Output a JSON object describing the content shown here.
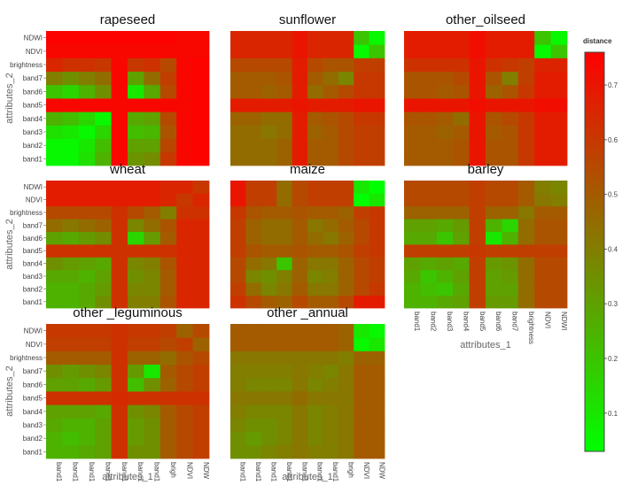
{
  "chart_data": {
    "type": "heatmap",
    "subplot_titles": [
      "rapeseed",
      "sunflower",
      "other_oilseed",
      "wheat",
      "maize",
      "barley",
      "other _leguminous",
      "other _annual"
    ],
    "attributes": [
      "band1",
      "band2",
      "band3",
      "band4",
      "band5",
      "band6",
      "band7",
      "brightness",
      "NDVI",
      "NDWI"
    ],
    "x_tick_labels_left": [
      "band1",
      "band1",
      "band1",
      "band1",
      "band1",
      "band1",
      "band1",
      "brigh",
      "NDVI",
      "NDW"
    ],
    "x_tick_labels_right": [
      "band1",
      "band2",
      "band3",
      "band4",
      "band5",
      "band6",
      "band7",
      "brightness",
      "NDVI",
      "NDWI"
    ],
    "y_tick_labels": [
      "band1",
      "band2",
      "band3",
      "band4",
      "band5",
      "band6",
      "band7",
      "brightness",
      "NDVI",
      "NDWI"
    ],
    "xlabel": "attributes_1",
    "ylabel": "attributes_2",
    "colorbar": {
      "title": "distance",
      "ticks": [
        0.1,
        0.2,
        0.3,
        0.4,
        0.5,
        0.6,
        0.7
      ],
      "range": [
        0.03,
        0.76
      ],
      "colors": [
        "#00ff00",
        "#ff0000"
      ]
    },
    "grid": false,
    "panels": [
      {
        "name": "rapeseed",
        "z": [
          [
            0.05,
            0.05,
            0.12,
            0.25,
            0.74,
            0.34,
            0.36,
            0.6,
            0.74,
            0.75
          ],
          [
            0.05,
            0.05,
            0.1,
            0.22,
            0.74,
            0.3,
            0.3,
            0.56,
            0.74,
            0.75
          ],
          [
            0.12,
            0.1,
            0.05,
            0.15,
            0.74,
            0.22,
            0.24,
            0.52,
            0.74,
            0.75
          ],
          [
            0.25,
            0.22,
            0.15,
            0.05,
            0.74,
            0.28,
            0.3,
            0.55,
            0.74,
            0.75
          ],
          [
            0.74,
            0.74,
            0.74,
            0.74,
            0.74,
            0.74,
            0.74,
            0.74,
            0.74,
            0.75
          ],
          [
            0.2,
            0.15,
            0.25,
            0.35,
            0.74,
            0.1,
            0.28,
            0.55,
            0.74,
            0.75
          ],
          [
            0.4,
            0.35,
            0.4,
            0.45,
            0.74,
            0.3,
            0.45,
            0.58,
            0.74,
            0.75
          ],
          [
            0.65,
            0.62,
            0.62,
            0.6,
            0.74,
            0.6,
            0.62,
            0.55,
            0.74,
            0.75
          ],
          [
            0.74,
            0.74,
            0.74,
            0.74,
            0.74,
            0.74,
            0.74,
            0.74,
            0.74,
            0.74
          ],
          [
            0.75,
            0.75,
            0.75,
            0.75,
            0.75,
            0.75,
            0.75,
            0.75,
            0.74,
            0.74
          ]
        ]
      },
      {
        "name": "sunflower",
        "z": [
          [
            0.45,
            0.45,
            0.45,
            0.48,
            0.68,
            0.5,
            0.5,
            0.55,
            0.58,
            0.58
          ],
          [
            0.45,
            0.45,
            0.45,
            0.48,
            0.68,
            0.5,
            0.5,
            0.55,
            0.58,
            0.58
          ],
          [
            0.45,
            0.45,
            0.42,
            0.45,
            0.68,
            0.48,
            0.5,
            0.55,
            0.58,
            0.58
          ],
          [
            0.48,
            0.48,
            0.45,
            0.45,
            0.68,
            0.5,
            0.52,
            0.55,
            0.6,
            0.6
          ],
          [
            0.68,
            0.68,
            0.68,
            0.68,
            0.7,
            0.68,
            0.68,
            0.68,
            0.7,
            0.7
          ],
          [
            0.5,
            0.5,
            0.48,
            0.5,
            0.68,
            0.45,
            0.5,
            0.55,
            0.6,
            0.6
          ],
          [
            0.5,
            0.5,
            0.5,
            0.52,
            0.68,
            0.5,
            0.45,
            0.38,
            0.6,
            0.6
          ],
          [
            0.55,
            0.55,
            0.55,
            0.55,
            0.68,
            0.55,
            0.52,
            0.52,
            0.58,
            0.58
          ],
          [
            0.65,
            0.65,
            0.65,
            0.65,
            0.7,
            0.65,
            0.65,
            0.65,
            0.05,
            0.2
          ],
          [
            0.65,
            0.65,
            0.65,
            0.65,
            0.7,
            0.65,
            0.65,
            0.65,
            0.2,
            0.05
          ]
        ]
      },
      {
        "name": "other_oilseed",
        "z": [
          [
            0.5,
            0.5,
            0.5,
            0.52,
            0.7,
            0.52,
            0.52,
            0.6,
            0.68,
            0.68
          ],
          [
            0.5,
            0.5,
            0.5,
            0.52,
            0.7,
            0.52,
            0.52,
            0.6,
            0.68,
            0.68
          ],
          [
            0.5,
            0.5,
            0.48,
            0.5,
            0.7,
            0.5,
            0.52,
            0.6,
            0.68,
            0.68
          ],
          [
            0.52,
            0.52,
            0.5,
            0.45,
            0.7,
            0.52,
            0.55,
            0.6,
            0.68,
            0.68
          ],
          [
            0.7,
            0.7,
            0.7,
            0.7,
            0.72,
            0.7,
            0.7,
            0.7,
            0.72,
            0.72
          ],
          [
            0.52,
            0.52,
            0.5,
            0.52,
            0.7,
            0.48,
            0.52,
            0.6,
            0.68,
            0.68
          ],
          [
            0.52,
            0.52,
            0.52,
            0.55,
            0.7,
            0.52,
            0.4,
            0.58,
            0.68,
            0.68
          ],
          [
            0.62,
            0.62,
            0.62,
            0.62,
            0.7,
            0.62,
            0.6,
            0.58,
            0.66,
            0.66
          ],
          [
            0.68,
            0.68,
            0.68,
            0.68,
            0.72,
            0.68,
            0.68,
            0.68,
            0.05,
            0.2
          ],
          [
            0.68,
            0.68,
            0.68,
            0.68,
            0.72,
            0.68,
            0.68,
            0.68,
            0.2,
            0.05
          ]
        ]
      },
      {
        "name": "wheat",
        "z": [
          [
            0.25,
            0.25,
            0.28,
            0.35,
            0.62,
            0.4,
            0.4,
            0.52,
            0.65,
            0.65
          ],
          [
            0.25,
            0.25,
            0.28,
            0.32,
            0.62,
            0.38,
            0.38,
            0.5,
            0.65,
            0.65
          ],
          [
            0.28,
            0.28,
            0.25,
            0.3,
            0.62,
            0.35,
            0.38,
            0.5,
            0.65,
            0.65
          ],
          [
            0.35,
            0.32,
            0.3,
            0.28,
            0.62,
            0.38,
            0.4,
            0.52,
            0.65,
            0.65
          ],
          [
            0.62,
            0.62,
            0.62,
            0.62,
            0.62,
            0.62,
            0.62,
            0.62,
            0.65,
            0.65
          ],
          [
            0.3,
            0.28,
            0.32,
            0.36,
            0.62,
            0.15,
            0.32,
            0.5,
            0.65,
            0.65
          ],
          [
            0.45,
            0.42,
            0.45,
            0.48,
            0.62,
            0.38,
            0.45,
            0.52,
            0.65,
            0.65
          ],
          [
            0.55,
            0.55,
            0.55,
            0.55,
            0.62,
            0.55,
            0.5,
            0.4,
            0.62,
            0.62
          ],
          [
            0.68,
            0.68,
            0.68,
            0.68,
            0.68,
            0.68,
            0.68,
            0.65,
            0.6,
            0.65
          ],
          [
            0.68,
            0.68,
            0.68,
            0.68,
            0.68,
            0.68,
            0.68,
            0.65,
            0.65,
            0.6
          ]
        ]
      },
      {
        "name": "maize",
        "z": [
          [
            0.62,
            0.55,
            0.5,
            0.48,
            0.55,
            0.5,
            0.5,
            0.55,
            0.68,
            0.68
          ],
          [
            0.58,
            0.45,
            0.38,
            0.42,
            0.5,
            0.42,
            0.42,
            0.48,
            0.55,
            0.6
          ],
          [
            0.55,
            0.38,
            0.35,
            0.4,
            0.48,
            0.38,
            0.4,
            0.48,
            0.55,
            0.58
          ],
          [
            0.55,
            0.45,
            0.42,
            0.2,
            0.48,
            0.42,
            0.42,
            0.48,
            0.55,
            0.58
          ],
          [
            0.58,
            0.52,
            0.5,
            0.5,
            0.52,
            0.5,
            0.5,
            0.52,
            0.58,
            0.6
          ],
          [
            0.58,
            0.48,
            0.45,
            0.45,
            0.5,
            0.45,
            0.42,
            0.48,
            0.55,
            0.6
          ],
          [
            0.58,
            0.48,
            0.45,
            0.45,
            0.5,
            0.42,
            0.45,
            0.5,
            0.55,
            0.6
          ],
          [
            0.6,
            0.52,
            0.5,
            0.5,
            0.52,
            0.5,
            0.5,
            0.48,
            0.58,
            0.6
          ],
          [
            0.7,
            0.58,
            0.58,
            0.45,
            0.55,
            0.58,
            0.58,
            0.58,
            0.03,
            0.1
          ],
          [
            0.7,
            0.58,
            0.58,
            0.45,
            0.55,
            0.58,
            0.58,
            0.58,
            0.1,
            0.03
          ]
        ]
      },
      {
        "name": "barley",
        "z": [
          [
            0.25,
            0.25,
            0.28,
            0.3,
            0.58,
            0.32,
            0.32,
            0.45,
            0.55,
            0.55
          ],
          [
            0.25,
            0.22,
            0.2,
            0.28,
            0.58,
            0.3,
            0.3,
            0.45,
            0.55,
            0.55
          ],
          [
            0.28,
            0.2,
            0.25,
            0.3,
            0.58,
            0.3,
            0.32,
            0.45,
            0.55,
            0.55
          ],
          [
            0.3,
            0.28,
            0.3,
            0.28,
            0.58,
            0.32,
            0.34,
            0.45,
            0.55,
            0.55
          ],
          [
            0.58,
            0.58,
            0.58,
            0.58,
            0.6,
            0.58,
            0.58,
            0.58,
            0.58,
            0.58
          ],
          [
            0.28,
            0.28,
            0.2,
            0.3,
            0.58,
            0.1,
            0.25,
            0.45,
            0.52,
            0.52
          ],
          [
            0.3,
            0.3,
            0.28,
            0.32,
            0.58,
            0.25,
            0.15,
            0.45,
            0.52,
            0.52
          ],
          [
            0.48,
            0.48,
            0.48,
            0.48,
            0.58,
            0.48,
            0.48,
            0.42,
            0.5,
            0.5
          ],
          [
            0.55,
            0.55,
            0.55,
            0.55,
            0.58,
            0.55,
            0.55,
            0.5,
            0.42,
            0.4
          ],
          [
            0.55,
            0.55,
            0.55,
            0.55,
            0.58,
            0.55,
            0.55,
            0.5,
            0.4,
            0.38
          ]
        ]
      },
      {
        "name": "other _leguminous",
        "z": [
          [
            0.25,
            0.25,
            0.28,
            0.3,
            0.62,
            0.35,
            0.35,
            0.5,
            0.55,
            0.58
          ],
          [
            0.25,
            0.22,
            0.25,
            0.3,
            0.62,
            0.32,
            0.35,
            0.5,
            0.55,
            0.58
          ],
          [
            0.28,
            0.25,
            0.25,
            0.3,
            0.62,
            0.32,
            0.35,
            0.5,
            0.55,
            0.58
          ],
          [
            0.3,
            0.3,
            0.3,
            0.28,
            0.62,
            0.35,
            0.38,
            0.5,
            0.55,
            0.58
          ],
          [
            0.62,
            0.62,
            0.62,
            0.62,
            0.64,
            0.62,
            0.62,
            0.62,
            0.62,
            0.62
          ],
          [
            0.3,
            0.3,
            0.28,
            0.32,
            0.62,
            0.22,
            0.35,
            0.48,
            0.55,
            0.58
          ],
          [
            0.35,
            0.32,
            0.35,
            0.38,
            0.62,
            0.32,
            0.1,
            0.5,
            0.55,
            0.58
          ],
          [
            0.5,
            0.5,
            0.5,
            0.5,
            0.62,
            0.48,
            0.48,
            0.45,
            0.52,
            0.55
          ],
          [
            0.58,
            0.58,
            0.58,
            0.58,
            0.62,
            0.58,
            0.58,
            0.55,
            0.58,
            0.48
          ],
          [
            0.6,
            0.6,
            0.6,
            0.6,
            0.62,
            0.6,
            0.6,
            0.58,
            0.48,
            0.55
          ]
        ]
      },
      {
        "name": "other _annual",
        "z": [
          [
            0.35,
            0.35,
            0.38,
            0.4,
            0.42,
            0.4,
            0.4,
            0.42,
            0.5,
            0.5
          ],
          [
            0.35,
            0.32,
            0.35,
            0.38,
            0.42,
            0.38,
            0.4,
            0.42,
            0.5,
            0.5
          ],
          [
            0.38,
            0.35,
            0.35,
            0.38,
            0.42,
            0.38,
            0.4,
            0.42,
            0.5,
            0.5
          ],
          [
            0.4,
            0.38,
            0.38,
            0.38,
            0.42,
            0.38,
            0.4,
            0.42,
            0.5,
            0.5
          ],
          [
            0.42,
            0.42,
            0.42,
            0.42,
            0.45,
            0.42,
            0.42,
            0.42,
            0.5,
            0.5
          ],
          [
            0.4,
            0.38,
            0.38,
            0.38,
            0.42,
            0.38,
            0.4,
            0.42,
            0.5,
            0.5
          ],
          [
            0.4,
            0.4,
            0.4,
            0.4,
            0.42,
            0.4,
            0.38,
            0.42,
            0.5,
            0.5
          ],
          [
            0.42,
            0.42,
            0.42,
            0.42,
            0.42,
            0.42,
            0.42,
            0.4,
            0.48,
            0.48
          ],
          [
            0.5,
            0.5,
            0.5,
            0.5,
            0.5,
            0.5,
            0.5,
            0.48,
            0.05,
            0.1
          ],
          [
            0.5,
            0.5,
            0.5,
            0.5,
            0.5,
            0.5,
            0.5,
            0.48,
            0.1,
            0.05
          ]
        ]
      }
    ]
  }
}
